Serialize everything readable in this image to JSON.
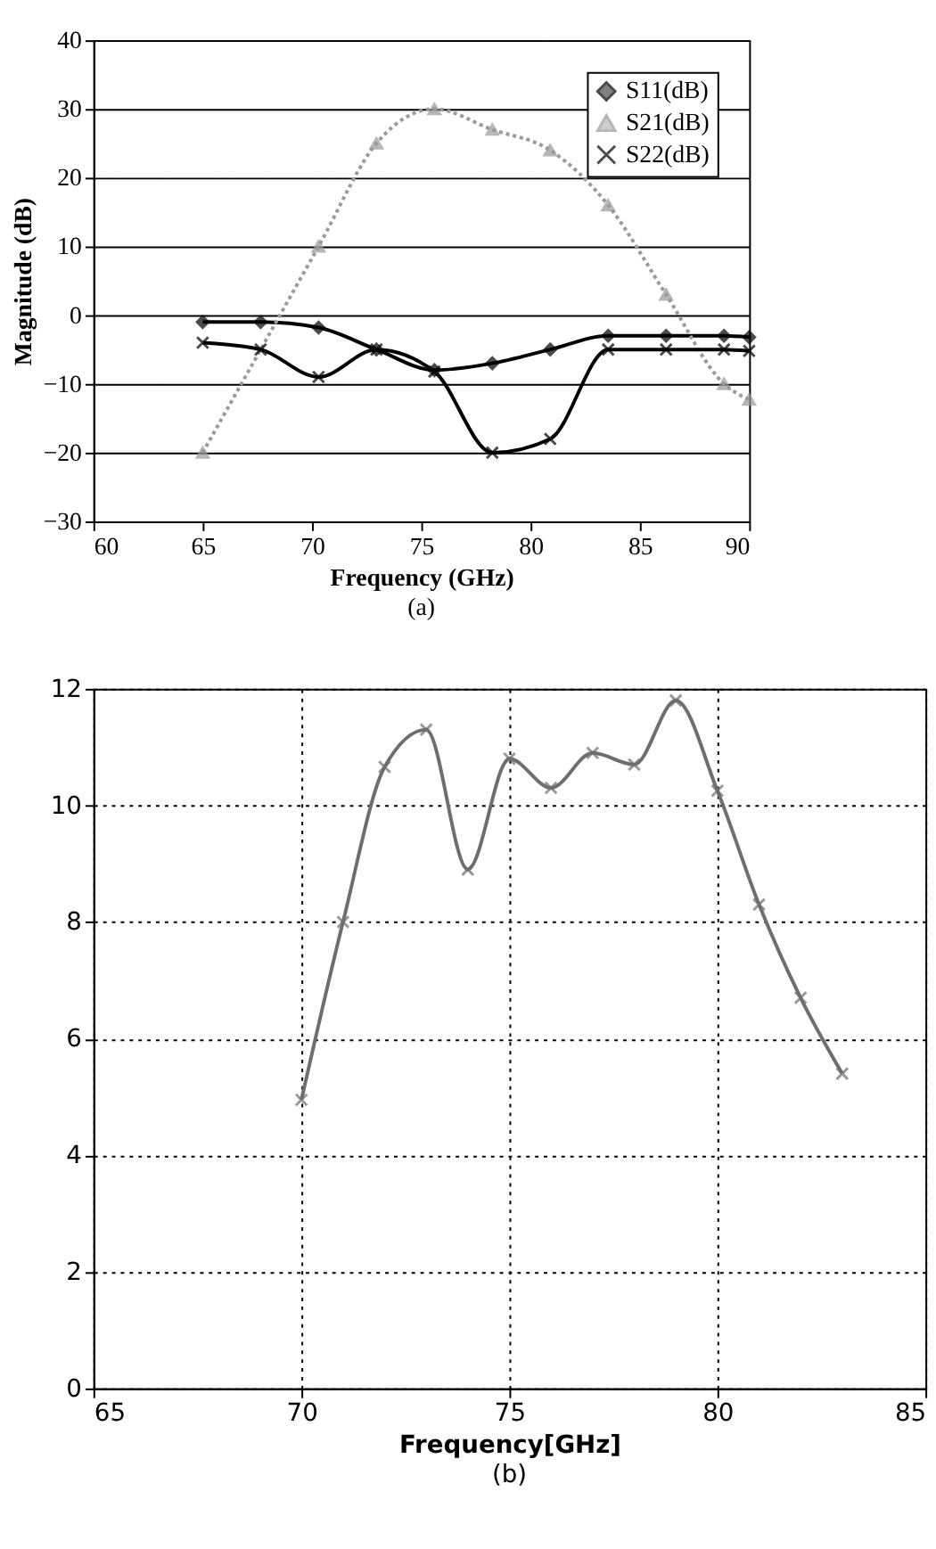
{
  "chart_data": [
    {
      "type": "line",
      "xlabel": "Frequency (GHz)",
      "ylabel": "Magnitude (dB)",
      "xlim": [
        60,
        90
      ],
      "xticks": [
        60,
        65,
        70,
        75,
        80,
        85,
        90
      ],
      "ylim": [
        -30,
        40
      ],
      "yticks": [
        -30,
        -20,
        -10,
        0,
        10,
        20,
        30,
        40
      ],
      "grid": "y",
      "legend": "top right",
      "annotations": [
        "(a)"
      ],
      "series": [
        {
          "name": "S11(dB)",
          "color": "#000000",
          "marker": "diamond",
          "line_style": "solid",
          "x": [
            65,
            67.65,
            70.3,
            72.95,
            75.6,
            78.25,
            80.9,
            83.55,
            86.2,
            88.85,
            90
          ],
          "values": [
            -1,
            -1,
            -1.8,
            -5,
            -8,
            -7,
            -5,
            -3,
            -3,
            -3,
            -3.2
          ]
        },
        {
          "name": "S21(dB)",
          "color": "#9a9a9a",
          "marker": "triangle",
          "line_style": "dotted",
          "x": [
            65,
            70.3,
            72.95,
            75.6,
            78.25,
            80.9,
            83.55,
            86.2,
            88.85,
            90
          ],
          "values": [
            -20,
            10,
            25,
            30,
            27,
            24,
            16,
            3,
            -10,
            -12.3
          ]
        },
        {
          "name": "S22(dB)",
          "color": "#000000",
          "marker": "cross",
          "line_style": "solid",
          "x": [
            65,
            67.65,
            70.3,
            72.95,
            75.6,
            78.25,
            80.9,
            83.55,
            86.2,
            88.85,
            90
          ],
          "values": [
            -4,
            -5,
            -9,
            -5,
            -8.2,
            -20,
            -18,
            -5,
            -5,
            -5,
            -5.2
          ]
        }
      ]
    },
    {
      "type": "line",
      "xlabel": "Frequency[GHz]",
      "xlim": [
        65,
        85
      ],
      "xticks": [
        65,
        70,
        75,
        80,
        85
      ],
      "ylim": [
        0,
        12
      ],
      "yticks": [
        0,
        2,
        4,
        6,
        8,
        10,
        12
      ],
      "grid": true,
      "annotations": [
        "(b)"
      ],
      "series": [
        {
          "color": "#6e6e6e",
          "marker": "cross",
          "line_style": "solid",
          "x": [
            70,
            71,
            72,
            73,
            74,
            75,
            76,
            77,
            78,
            79,
            80,
            81,
            82,
            83
          ],
          "values": [
            4.95,
            8.0,
            10.66,
            11.3,
            8.9,
            10.8,
            10.3,
            10.9,
            10.7,
            11.8,
            10.25,
            8.3,
            6.7,
            5.4
          ]
        }
      ]
    }
  ]
}
